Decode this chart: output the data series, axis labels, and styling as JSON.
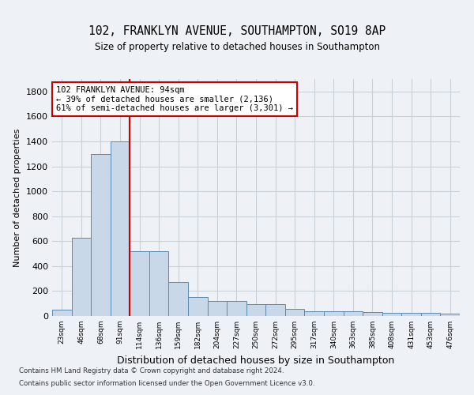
{
  "title": "102, FRANKLYN AVENUE, SOUTHAMPTON, SO19 8AP",
  "subtitle": "Size of property relative to detached houses in Southampton",
  "xlabel": "Distribution of detached houses by size in Southampton",
  "ylabel": "Number of detached properties",
  "bar_values": [
    50,
    630,
    1300,
    1400,
    520,
    520,
    270,
    150,
    120,
    120,
    95,
    95,
    55,
    40,
    35,
    35,
    30,
    25,
    25,
    25,
    20
  ],
  "categories": [
    "23sqm",
    "46sqm",
    "68sqm",
    "91sqm",
    "114sqm",
    "136sqm",
    "159sqm",
    "182sqm",
    "204sqm",
    "227sqm",
    "250sqm",
    "272sqm",
    "295sqm",
    "317sqm",
    "340sqm",
    "363sqm",
    "385sqm",
    "408sqm",
    "431sqm",
    "453sqm",
    "476sqm"
  ],
  "bar_color": "#c8d8e8",
  "bar_edge_color": "#5a8ab0",
  "grid_color": "#c8d0d8",
  "vline_color": "#cc0000",
  "vline_x": 3.5,
  "annotation_text": "102 FRANKLYN AVENUE: 94sqm\n← 39% of detached houses are smaller (2,136)\n61% of semi-detached houses are larger (3,301) →",
  "annotation_box_color": "#ffffff",
  "annotation_box_edge_color": "#cc0000",
  "ylim": [
    0,
    1900
  ],
  "yticks": [
    0,
    200,
    400,
    600,
    800,
    1000,
    1200,
    1400,
    1600,
    1800
  ],
  "footer_line1": "Contains HM Land Registry data © Crown copyright and database right 2024.",
  "footer_line2": "Contains public sector information licensed under the Open Government Licence v3.0.",
  "background_color": "#eef2f6"
}
